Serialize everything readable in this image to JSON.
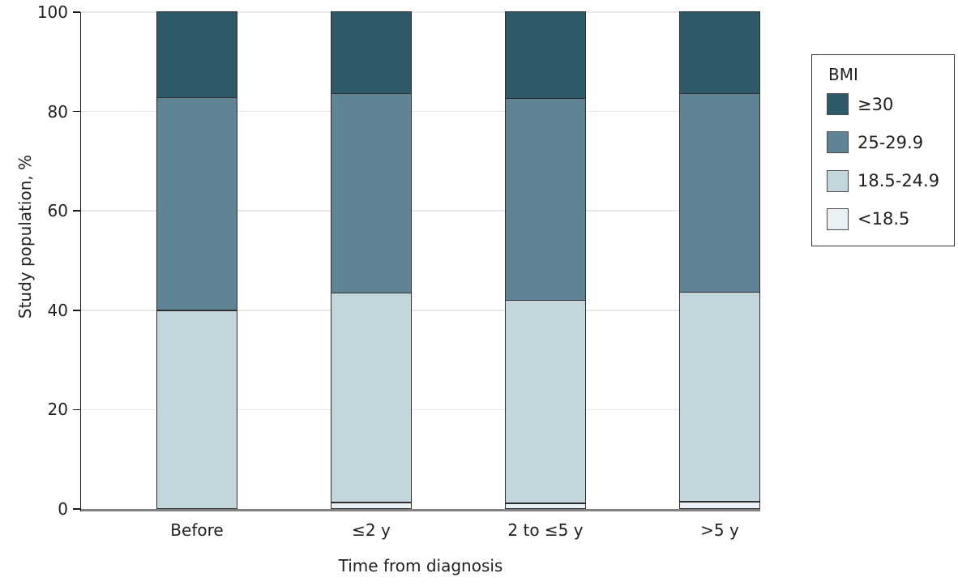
{
  "chart_data": {
    "type": "bar",
    "variant": "stacked-100-percent",
    "title": "",
    "xlabel": "Time from diagnosis",
    "ylabel": "Study population, %",
    "categories": [
      "Before",
      "≤2 y",
      "2 to ≤5 y",
      ">5 y"
    ],
    "series": [
      {
        "name": "<18.5",
        "color": "#EAF1F5",
        "values": [
          0,
          1.3,
          1.1,
          1.5
        ]
      },
      {
        "name": "18.5-24.9",
        "color": "#C3D5DD",
        "values": [
          40.0,
          42.1,
          40.9,
          42.0
        ]
      },
      {
        "name": "25-29.9",
        "color": "#5E8495",
        "values": [
          42.7,
          40.1,
          40.6,
          40.1
        ]
      },
      {
        "name": "≥30",
        "color": "#2E5A6A",
        "values": [
          17.3,
          16.5,
          17.4,
          16.4
        ]
      }
    ],
    "ylim": [
      0,
      100
    ],
    "yticks": [
      0,
      20,
      40,
      60,
      80,
      100
    ],
    "grid": "horizontal",
    "legend": {
      "title": "BMI",
      "position": "right",
      "entries": [
        {
          "label": "≥30",
          "color": "#2E5A6A"
        },
        {
          "label": "25-29.9",
          "color": "#5E8495"
        },
        {
          "label": "18.5-24.9",
          "color": "#C3D5DD"
        },
        {
          "label": "<18.5",
          "color": "#EAF1F5"
        }
      ]
    },
    "colors": {
      "segment_border": "#2E2E2E",
      "axis_line": "#1A1A1A",
      "baseline": "#828282",
      "gridline": "#E8E8E8",
      "text": "#212121"
    }
  }
}
